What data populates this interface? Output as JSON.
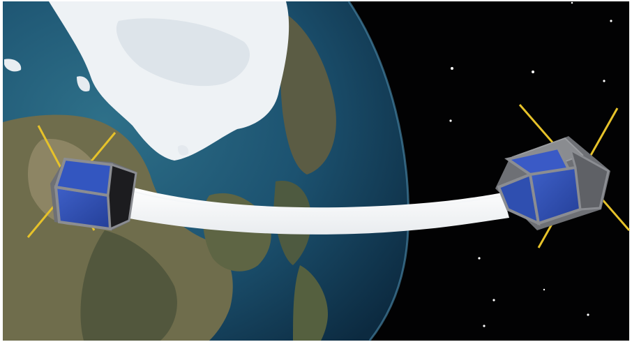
{
  "scene": {
    "subject": "two-cubesats-tether-earth-orbit",
    "colors": {
      "space": "#020203",
      "ocean_deep": "#123c5a",
      "ocean_light": "#2c6a86",
      "ice": "#eef2f5",
      "land": "#6e6a4e",
      "tether": "#ffffff",
      "panel": "#2f4fb0",
      "frame": "#7d7f83",
      "antenna": "#e6c22a",
      "star": "#ffffff"
    },
    "objects": [
      {
        "name": "earth",
        "icon": "planet"
      },
      {
        "name": "polar-ice-cap",
        "icon": "ice"
      },
      {
        "name": "cubesat-left",
        "icon": "satellite"
      },
      {
        "name": "cubesat-right",
        "icon": "satellite"
      },
      {
        "name": "tether",
        "icon": "ribbon"
      },
      {
        "name": "starfield",
        "icon": "stars"
      }
    ]
  }
}
